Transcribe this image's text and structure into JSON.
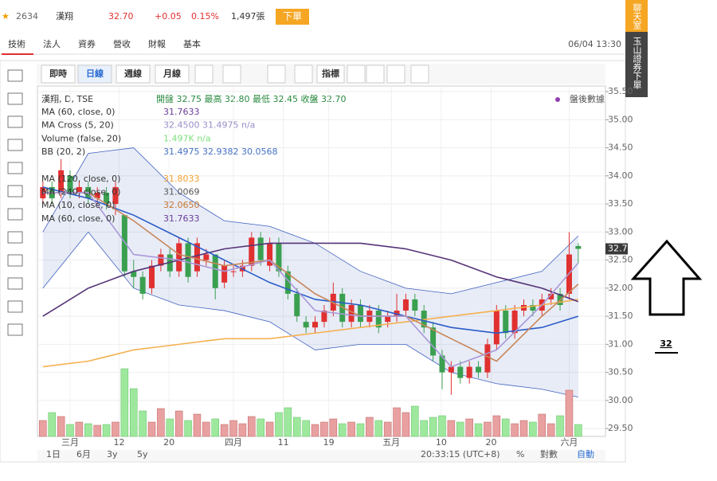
{
  "header": {
    "code": "2634",
    "name": "漢翔",
    "price": "32.70",
    "change": "+0.05",
    "pct": "0.15%",
    "volume": "1,497張",
    "order": "下單"
  },
  "tabs": [
    "技術",
    "法人",
    "資券",
    "營收",
    "財報",
    "基本"
  ],
  "time": "06/04 13:30",
  "toolbar": [
    "即時",
    "日線",
    "週線",
    "月線",
    "指標"
  ],
  "legend_title": "漢翔, D, TSE",
  "ohlc_text": "開盤 32.75 最高 32.80 最低 32.45 收盤 32.70",
  "after_hours": "盤後數據",
  "legend": [
    {
      "text": "MA (60, close, 0)",
      "value": "31.7633",
      "color": "#6a3d9a"
    },
    {
      "text": "MA Cross (5, 20)",
      "value": "32.4500 31.4975 n/a",
      "color": "#9a8fc8"
    },
    {
      "text": "Volume (false, 20)",
      "value": "1.497K n/a",
      "color": "#7ee07e"
    },
    {
      "text": "BB (20, 2)",
      "value": "31.4975 32.9382 30.0568",
      "color": "#4472c4"
    },
    {
      "text": "MA (120, close, 0)",
      "value": "31.8033",
      "color": "#f0a030"
    },
    {
      "text": "MA (240, close, 0)",
      "value": "31.0069",
      "color": "#555555"
    },
    {
      "text": "MA (10, close, 0)",
      "value": "32.0650",
      "color": "#c87830"
    },
    {
      "text": "MA (60, close, 0)",
      "value": "31.7633",
      "color": "#6a3d9a"
    }
  ],
  "bottom": {
    "ranges": [
      "1日",
      "6月",
      "3y",
      "5y"
    ],
    "clock": "20:33:15 (UTC+8)",
    "pct": "%",
    "log": "對數",
    "auto": "自動"
  },
  "side": [
    "聊天室",
    "玉山證券下單"
  ],
  "annotation": "32",
  "chart_data": {
    "type": "candlestick",
    "up_color": "#e03030",
    "down_color": "#3aa050",
    "xlabels": [
      {
        "value": 3,
        "label": "三月"
      },
      {
        "value": 8.4,
        "label": "12"
      },
      {
        "value": 13.9,
        "label": "20"
      },
      {
        "value": 21,
        "label": "四月"
      },
      {
        "value": 26.5,
        "label": "11"
      },
      {
        "value": 31.5,
        "label": "19"
      },
      {
        "value": 38.4,
        "label": "五月"
      },
      {
        "value": 43.9,
        "label": "10"
      },
      {
        "value": 49.4,
        "label": "20"
      },
      {
        "value": 58,
        "label": "六月"
      }
    ],
    "xlim": [
      -0.6,
      62
    ],
    "ylim": [
      29.36,
      35.6
    ],
    "yticks": [
      {
        "value": 29.5,
        "label": "29.50"
      },
      {
        "value": 30,
        "label": "30.00"
      },
      {
        "value": 30.5,
        "label": "30.50"
      },
      {
        "value": 31,
        "label": "31.00"
      },
      {
        "value": 31.5,
        "label": "31.50"
      },
      {
        "value": 32,
        "label": "32.00"
      },
      {
        "value": 32.5,
        "label": "32.50"
      },
      {
        "value": 33,
        "label": "33.00"
      },
      {
        "value": 33.5,
        "label": "33.50"
      },
      {
        "value": 34,
        "label": "34.00"
      },
      {
        "value": 34.5,
        "label": "34.50"
      },
      {
        "value": 35,
        "label": "35.00"
      },
      {
        "value": 35.5,
        "label": "35.50"
      }
    ],
    "last_label": "32.70",
    "last_value": 32.7,
    "open": [
      33.6,
      33.8,
      33.7,
      34.0,
      33.7,
      33.8,
      33.6,
      33.7,
      33.5,
      33.3,
      32.3,
      32.2,
      32.0,
      32.4,
      32.6,
      32.3,
      32.8,
      32.3,
      32.5,
      32.6,
      32.1,
      32.3,
      32.3,
      32.4,
      32.9,
      32.4,
      32.8,
      32.3,
      31.9,
      31.4,
      31.3,
      31.4,
      31.6,
      31.9,
      31.4,
      31.7,
      31.4,
      31.6,
      31.4,
      31.5,
      31.6,
      31.8,
      31.6,
      31.3,
      30.8,
      30.5,
      30.6,
      30.4,
      30.6,
      30.5,
      31.0,
      31.6,
      31.2,
      31.6,
      31.7,
      31.6,
      31.8,
      31.9,
      31.9,
      32.75
    ],
    "high": [
      33.9,
      33.9,
      34.3,
      34.1,
      33.9,
      33.9,
      33.8,
      33.8,
      33.9,
      33.3,
      32.5,
      32.3,
      32.5,
      32.7,
      32.7,
      32.9,
      32.9,
      32.9,
      32.7,
      32.6,
      32.5,
      32.4,
      32.5,
      33.0,
      33.0,
      32.9,
      32.9,
      32.4,
      32.0,
      31.5,
      31.5,
      31.7,
      32.1,
      32.0,
      31.8,
      31.8,
      31.7,
      31.7,
      31.6,
      31.9,
      31.9,
      31.9,
      31.7,
      31.4,
      30.9,
      30.7,
      30.7,
      30.7,
      30.7,
      31.1,
      31.7,
      31.7,
      31.7,
      31.8,
      31.8,
      31.9,
      32.0,
      32.0,
      33.0,
      32.8
    ],
    "low": [
      33.5,
      33.5,
      33.6,
      33.6,
      33.6,
      33.5,
      33.5,
      33.4,
      33.3,
      32.2,
      32.0,
      31.8,
      31.9,
      32.3,
      32.2,
      32.2,
      32.1,
      32.2,
      32.4,
      31.8,
      32.0,
      32.2,
      32.2,
      32.3,
      32.4,
      32.3,
      32.2,
      31.8,
      31.4,
      31.2,
      31.2,
      31.3,
      31.5,
      31.3,
      31.3,
      31.3,
      31.3,
      31.2,
      31.3,
      31.4,
      31.5,
      31.5,
      31.2,
      30.7,
      30.2,
      30.1,
      30.3,
      30.3,
      30.4,
      30.4,
      30.9,
      31.1,
      31.1,
      31.5,
      31.5,
      31.5,
      31.7,
      31.6,
      31.8,
      32.45
    ],
    "close": [
      33.8,
      33.6,
      34.1,
      33.7,
      33.8,
      33.6,
      33.7,
      33.5,
      33.8,
      32.3,
      32.2,
      31.9,
      32.4,
      32.6,
      32.3,
      32.8,
      32.2,
      32.8,
      32.6,
      32.0,
      32.4,
      32.3,
      32.4,
      32.9,
      32.5,
      32.8,
      32.3,
      31.9,
      31.5,
      31.3,
      31.4,
      31.6,
      31.9,
      31.4,
      31.7,
      31.4,
      31.6,
      31.3,
      31.5,
      31.6,
      31.8,
      31.6,
      31.3,
      30.8,
      30.5,
      30.6,
      30.4,
      30.6,
      30.5,
      31.0,
      31.6,
      31.2,
      31.6,
      31.7,
      31.6,
      31.8,
      31.9,
      31.7,
      32.6,
      32.7
    ],
    "volume": [
      2.0,
      3.0,
      2.5,
      1.5,
      1.8,
      1.6,
      1.4,
      1.5,
      1.8,
      8.5,
      6.0,
      3.2,
      1.8,
      3.5,
      2.2,
      3.2,
      2.0,
      2.8,
      1.8,
      2.2,
      1.5,
      2.0,
      1.6,
      2.5,
      2.2,
      1.8,
      3.0,
      3.6,
      2.4,
      2.0,
      1.5,
      1.8,
      2.2,
      1.6,
      1.8,
      1.6,
      2.4,
      2.0,
      1.8,
      3.6,
      3.0,
      3.8,
      2.0,
      2.4,
      2.6,
      2.0,
      1.8,
      2.2,
      1.6,
      1.8,
      2.6,
      2.2,
      1.6,
      2.0,
      1.8,
      2.8,
      1.6,
      2.6,
      5.8,
      1.497
    ],
    "volume_ylim": [
      0,
      11
    ],
    "lines_x": [
      0,
      5,
      10,
      15,
      20,
      25,
      30,
      35,
      40,
      45,
      50,
      55,
      59
    ],
    "band": {
      "upper": [
        33.0,
        34.4,
        34.5,
        33.7,
        33.2,
        33.1,
        32.8,
        32.3,
        32.0,
        31.9,
        32.1,
        32.3,
        32.93
      ],
      "lower": [
        32.0,
        33.0,
        32.0,
        31.7,
        31.6,
        31.4,
        30.9,
        31.0,
        31.0,
        30.5,
        30.3,
        30.2,
        30.06
      ],
      "color": "#4060c0"
    },
    "lines": [
      {
        "color": "#f5b050",
        "values": [
          30.6,
          30.7,
          30.9,
          31.0,
          31.1,
          31.1,
          31.2,
          31.3,
          31.4,
          31.5,
          31.6,
          31.7,
          31.8
        ]
      },
      {
        "color": "#553377",
        "values": [
          31.5,
          32.0,
          32.3,
          32.5,
          32.7,
          32.8,
          32.8,
          32.8,
          32.7,
          32.5,
          32.2,
          32.0,
          31.76
        ]
      },
      {
        "color": "#2a5cc8",
        "values": [
          33.8,
          33.6,
          33.3,
          32.9,
          32.5,
          32.1,
          31.8,
          31.7,
          31.5,
          31.3,
          31.2,
          31.3,
          31.5
        ]
      },
      {
        "color": "#c8865a",
        "values": [
          33.7,
          33.7,
          33.2,
          32.6,
          32.4,
          32.5,
          31.9,
          31.5,
          31.5,
          31.1,
          30.7,
          31.5,
          32.07
        ]
      },
      {
        "color": "#a898d8",
        "values": [
          33.7,
          33.7,
          32.6,
          32.5,
          32.3,
          32.5,
          31.6,
          31.5,
          31.5,
          30.6,
          30.9,
          31.7,
          32.45
        ]
      }
    ]
  }
}
